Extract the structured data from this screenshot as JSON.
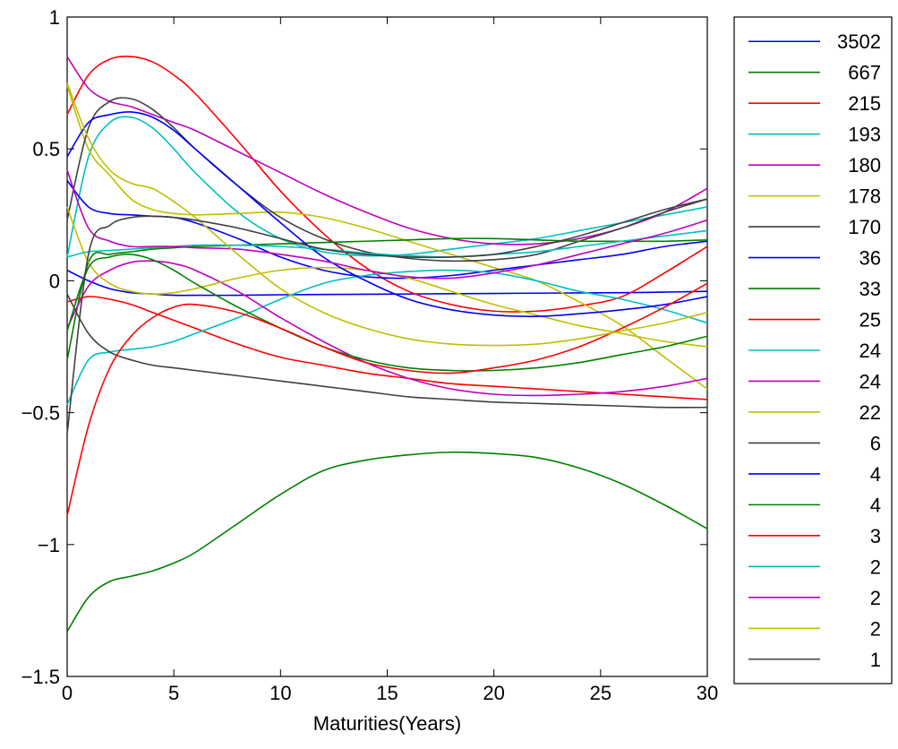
{
  "chart_data": {
    "type": "line",
    "title": "",
    "xlabel": "Maturities(Years)",
    "ylabel": "",
    "xlim": [
      0,
      30
    ],
    "ylim": [
      -1.5,
      1
    ],
    "xticks": [
      0,
      5,
      10,
      15,
      20,
      25,
      30
    ],
    "yticks": [
      -1.5,
      -1,
      -0.5,
      0,
      0.5,
      1
    ],
    "x_tick_labels": [
      "0",
      "5",
      "10",
      "15",
      "20",
      "25",
      "30"
    ],
    "y_tick_labels": [
      "−1.5",
      "−1",
      "−0.5",
      "0",
      "0.5",
      "1"
    ],
    "grid": false,
    "legend_position": "outside-right",
    "x": [
      0,
      1,
      2,
      3,
      4,
      5,
      6,
      8,
      10,
      12,
      14,
      16,
      18,
      20,
      22,
      24,
      26,
      28,
      30
    ],
    "series": [
      {
        "name": "3502",
        "color": "#0000ff",
        "values": [
          0.04,
          0.0,
          -0.03,
          -0.045,
          -0.05,
          -0.055,
          -0.055,
          -0.055,
          -0.053,
          -0.052,
          -0.051,
          -0.05,
          -0.049,
          -0.048,
          -0.047,
          -0.046,
          -0.045,
          -0.043,
          -0.04
        ]
      },
      {
        "name": "667",
        "color": "#008000",
        "values": [
          -1.33,
          -1.2,
          -1.14,
          -1.12,
          -1.1,
          -1.07,
          -1.03,
          -0.92,
          -0.81,
          -0.72,
          -0.68,
          -0.66,
          -0.65,
          -0.655,
          -0.67,
          -0.71,
          -0.77,
          -0.85,
          -0.94
        ]
      },
      {
        "name": "215",
        "color": "#ff0000",
        "values": [
          0.63,
          0.78,
          0.84,
          0.85,
          0.83,
          0.78,
          0.71,
          0.53,
          0.34,
          0.18,
          0.05,
          -0.04,
          -0.09,
          -0.115,
          -0.115,
          -0.095,
          -0.06,
          0.03,
          0.13
        ]
      },
      {
        "name": "193",
        "color": "#00bfbf",
        "values": [
          0.09,
          0.47,
          0.6,
          0.62,
          0.58,
          0.5,
          0.41,
          0.26,
          0.16,
          0.11,
          0.095,
          0.1,
          0.12,
          0.14,
          0.16,
          0.19,
          0.22,
          0.25,
          0.28
        ]
      },
      {
        "name": "180",
        "color": "#bf00bf",
        "values": [
          0.85,
          0.73,
          0.68,
          0.66,
          0.63,
          0.6,
          0.57,
          0.49,
          0.41,
          0.33,
          0.26,
          0.2,
          0.16,
          0.14,
          0.14,
          0.16,
          0.2,
          0.26,
          0.35
        ]
      },
      {
        "name": "178",
        "color": "#bfbf00",
        "values": [
          0.74,
          0.5,
          0.4,
          0.31,
          0.27,
          0.255,
          0.25,
          0.255,
          0.26,
          0.24,
          0.2,
          0.15,
          0.1,
          0.05,
          -0.0,
          -0.08,
          -0.17,
          -0.29,
          -0.41
        ]
      },
      {
        "name": "170",
        "color": "#404040",
        "values": [
          0.23,
          0.58,
          0.68,
          0.69,
          0.65,
          0.58,
          0.5,
          0.36,
          0.24,
          0.16,
          0.11,
          0.085,
          0.075,
          0.08,
          0.1,
          0.15,
          0.2,
          0.26,
          0.31
        ]
      },
      {
        "name": "36",
        "color": "#0000ff",
        "values": [
          0.38,
          0.28,
          0.255,
          0.25,
          0.245,
          0.24,
          0.22,
          0.16,
          0.09,
          0.04,
          0.015,
          0.01,
          0.02,
          0.04,
          0.06,
          0.08,
          0.1,
          0.13,
          0.15
        ]
      },
      {
        "name": "33",
        "color": "#008000",
        "values": [
          -0.3,
          0.07,
          0.1,
          0.11,
          0.12,
          0.125,
          0.13,
          0.135,
          0.14,
          0.145,
          0.15,
          0.155,
          0.16,
          0.16,
          0.155,
          0.15,
          0.15,
          0.15,
          0.155
        ]
      },
      {
        "name": "25",
        "color": "#ff0000",
        "values": [
          -0.08,
          -0.06,
          -0.07,
          -0.09,
          -0.12,
          -0.15,
          -0.18,
          -0.24,
          -0.29,
          -0.32,
          -0.35,
          -0.37,
          -0.39,
          -0.4,
          -0.41,
          -0.42,
          -0.43,
          -0.44,
          -0.45
        ]
      },
      {
        "name": "24",
        "color": "#00bfbf",
        "values": [
          -0.47,
          -0.3,
          -0.27,
          -0.26,
          -0.25,
          -0.23,
          -0.2,
          -0.14,
          -0.07,
          -0.01,
          0.02,
          0.035,
          0.04,
          0.03,
          -0.0,
          -0.04,
          -0.07,
          -0.11,
          -0.16
        ]
      },
      {
        "name": "24",
        "color": "#bf00bf",
        "values": [
          -0.18,
          -0.02,
          0.04,
          0.07,
          0.075,
          0.065,
          0.04,
          -0.04,
          -0.14,
          -0.23,
          -0.31,
          -0.37,
          -0.41,
          -0.43,
          -0.435,
          -0.43,
          -0.42,
          -0.4,
          -0.37
        ]
      },
      {
        "name": "22",
        "color": "#bfbf00",
        "values": [
          0.28,
          0.07,
          -0.01,
          -0.04,
          -0.05,
          -0.045,
          -0.03,
          0.01,
          0.04,
          0.05,
          0.04,
          0.01,
          -0.04,
          -0.09,
          -0.13,
          -0.17,
          -0.2,
          -0.23,
          -0.25
        ]
      },
      {
        "name": "6",
        "color": "#404040",
        "values": [
          -0.05,
          -0.2,
          -0.27,
          -0.3,
          -0.32,
          -0.33,
          -0.34,
          -0.36,
          -0.38,
          -0.4,
          -0.42,
          -0.44,
          -0.45,
          -0.46,
          -0.465,
          -0.47,
          -0.475,
          -0.48,
          -0.48
        ]
      },
      {
        "name": "4",
        "color": "#0000ff",
        "values": [
          0.47,
          0.6,
          0.63,
          0.64,
          0.62,
          0.57,
          0.5,
          0.36,
          0.22,
          0.09,
          -0.0,
          -0.07,
          -0.11,
          -0.13,
          -0.135,
          -0.125,
          -0.11,
          -0.09,
          -0.06
        ]
      },
      {
        "name": "4",
        "color": "#008000",
        "values": [
          -0.19,
          0.05,
          0.09,
          0.1,
          0.08,
          0.04,
          -0.01,
          -0.1,
          -0.18,
          -0.25,
          -0.3,
          -0.33,
          -0.34,
          -0.34,
          -0.33,
          -0.31,
          -0.28,
          -0.25,
          -0.21
        ]
      },
      {
        "name": "3",
        "color": "#ff0000",
        "values": [
          -0.89,
          -0.55,
          -0.33,
          -0.21,
          -0.14,
          -0.1,
          -0.09,
          -0.12,
          -0.18,
          -0.25,
          -0.31,
          -0.34,
          -0.35,
          -0.33,
          -0.3,
          -0.25,
          -0.18,
          -0.1,
          -0.01
        ]
      },
      {
        "name": "2",
        "color": "#00bfbf",
        "values": [
          0.09,
          0.11,
          0.115,
          0.12,
          0.125,
          0.13,
          0.135,
          0.135,
          0.13,
          0.12,
          0.105,
          0.095,
          0.09,
          0.1,
          0.11,
          0.13,
          0.15,
          0.17,
          0.19
        ]
      },
      {
        "name": "2",
        "color": "#bf00bf",
        "values": [
          0.42,
          0.2,
          0.15,
          0.13,
          0.13,
          0.13,
          0.125,
          0.12,
          0.1,
          0.075,
          0.04,
          0.015,
          0.01,
          0.03,
          0.06,
          0.1,
          0.14,
          0.18,
          0.23
        ]
      },
      {
        "name": "2",
        "color": "#bfbf00",
        "values": [
          0.75,
          0.54,
          0.42,
          0.37,
          0.35,
          0.3,
          0.24,
          0.1,
          -0.03,
          -0.12,
          -0.18,
          -0.22,
          -0.24,
          -0.245,
          -0.24,
          -0.22,
          -0.19,
          -0.16,
          -0.12
        ]
      },
      {
        "name": "1",
        "color": "#404040",
        "values": [
          -0.58,
          0.1,
          0.21,
          0.24,
          0.245,
          0.24,
          0.23,
          0.2,
          0.16,
          0.12,
          0.1,
          0.09,
          0.09,
          0.1,
          0.13,
          0.17,
          0.22,
          0.27,
          0.31
        ]
      }
    ]
  }
}
